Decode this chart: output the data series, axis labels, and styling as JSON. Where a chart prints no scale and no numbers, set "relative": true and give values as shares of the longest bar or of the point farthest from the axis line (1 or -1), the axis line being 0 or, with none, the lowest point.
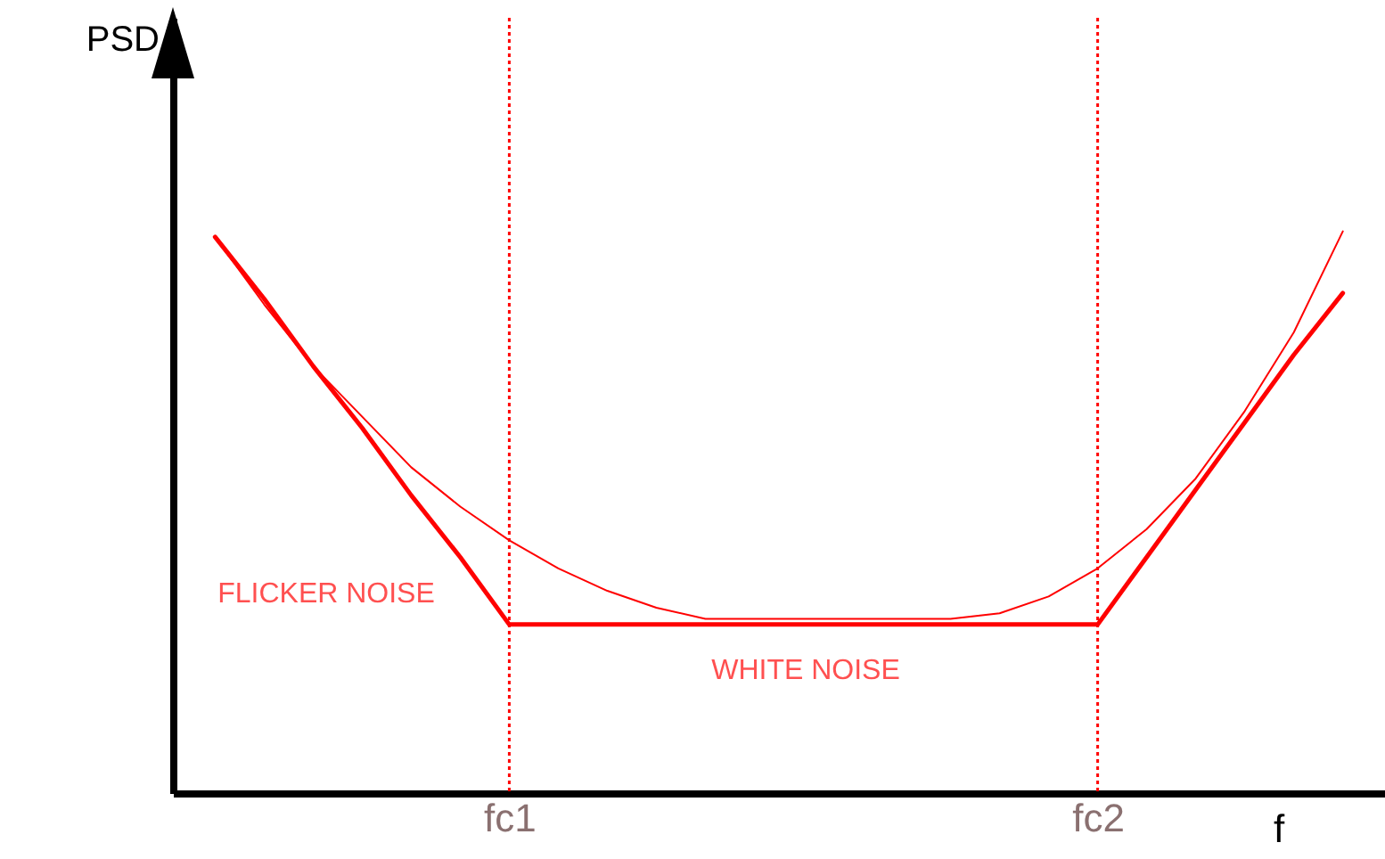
{
  "chart_data": {
    "type": "line",
    "relative": true,
    "ylabel": "PSD",
    "xlabel": "f",
    "categories": [
      null,
      null,
      null,
      null,
      null,
      null,
      "fc1",
      null,
      null,
      null,
      null,
      null,
      null,
      null,
      null,
      null,
      null,
      null,
      "fc2",
      null,
      null,
      null,
      null,
      null
    ],
    "series": [
      {
        "color": "#ff0000",
        "values": [
          0.99,
          0.88,
          0.76,
          0.65,
          0.53,
          0.42,
          0.3,
          0.3,
          0.3,
          0.3,
          0.3,
          0.3,
          0.3,
          0.3,
          0.3,
          0.3,
          0.3,
          0.3,
          0.3,
          0.42,
          0.54,
          0.66,
          0.78,
          0.89
        ]
      },
      {
        "color": "#ff0000",
        "values": [
          0.99,
          0.87,
          0.76,
          0.67,
          0.58,
          0.51,
          0.45,
          0.4,
          0.36,
          0.33,
          0.31,
          0.31,
          0.31,
          0.31,
          0.31,
          0.31,
          0.32,
          0.35,
          0.4,
          0.47,
          0.56,
          0.68,
          0.82,
          1
        ]
      }
    ],
    "ref_lines": [
      {
        "axis": "x",
        "value": "fc1",
        "color": "#ff0000",
        "line_style": "dotted"
      },
      {
        "axis": "x",
        "value": "fc2",
        "color": "#ff0000",
        "line_style": "dotted"
      }
    ],
    "annotations": [
      "FLICKER NOISE",
      "WHITE NOISE"
    ]
  }
}
